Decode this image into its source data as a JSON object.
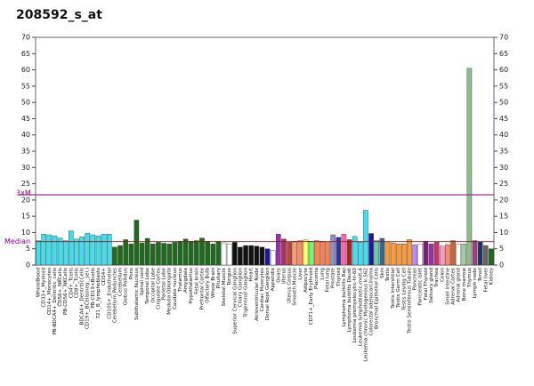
{
  "chart_data": {
    "type": "bar",
    "title": "208592_s_at",
    "categories": [
      "WholeBlood",
      "CD33+_Myeloid",
      "CD14+_Monocytes",
      "PB-BDCA4+_Dentritic_cells",
      "CD56+_NKCells",
      "PB-CD56+_NKCells",
      "CD4+_Tcells",
      "CD8+_Tcells",
      "BDCA4+_DentriticCells",
      "CD19+_BCells(neg._sel.)",
      "PB-CD19+Bcells",
      "721_B_lymphoblasts",
      "CD34+",
      "CD105+_Endothelial",
      "Cerebellum Peduncles",
      "Cerebellum",
      "Globus Pallidus",
      "Pons",
      "Subthalamic Nucleus",
      "Spinal cord",
      "Temporal Lobe",
      "Occipital Lobe",
      "Cingulate Cortex",
      "Parietal Lobe",
      "Medulla Oblongata",
      "Caudate nucleus",
      "Thalamus",
      "Amygdala",
      "Hypothalamus",
      "Fetal brain",
      "Prefrontal Cortex",
      "Olfactory Bulb",
      "Whole Brain",
      "Pituitary",
      "Skeletal Muscle",
      "Tongue",
      "Superior Cervical Ganglion",
      "Ciliary Ganglion",
      "Trigeminal Ganglion",
      "Heart",
      "Atrioventricular Node",
      "Cardiac Myocytes",
      "Dorsal Root Ganglion",
      "Appendix",
      "Ovary",
      "Uterus",
      "Uterus Corpus",
      "Smooth Muscle",
      "Liver",
      "Adipocyte",
      "CD71+_Early Erythroid",
      "Placenta",
      "Lung",
      "Fetal lung",
      "Prostate",
      "Thyroid",
      "Lymphoma burkitts Raji",
      "Lymphoma burkitts Daudi",
      "Leukemia promyelocytic-hl-60",
      "Leukemia lymphoblastic-molt-4",
      "Leukemia chronic Myelogenous k-562",
      "Colorectal adenocarcinoma",
      "Bronchial Epithelial Cells",
      "Skin",
      "Testis",
      "Testis Interstitial",
      "Testis Germ Cell",
      "Testis Leydig Cell",
      "Testis Seminiferous Tubule",
      "Pancreas",
      "Pancreatic Islet",
      "Fetal Thyroid",
      "Salivary gland",
      "Trachea",
      "Colon",
      "Small intestine",
      "Adrenal Cortex",
      "Adrenal gland",
      "Bone marrow",
      "Thymus",
      "Lymph node",
      "Tonsil",
      "Fetal liver",
      "Kidney"
    ],
    "values": [
      7.5,
      9.5,
      9.3,
      9,
      8.3,
      7.5,
      10.5,
      8,
      8.7,
      9.8,
      9.3,
      9,
      9.5,
      9.5,
      5.5,
      6,
      7.8,
      6.5,
      13.8,
      6.8,
      8.2,
      6.5,
      7,
      6.7,
      6.5,
      7,
      7.3,
      8,
      7.3,
      7.5,
      8.3,
      7.3,
      6.5,
      7.3,
      6.8,
      6.5,
      7,
      5.5,
      6,
      6,
      5.8,
      5.5,
      5,
      4.5,
      9.5,
      8,
      7,
      7.3,
      7.5,
      7.7,
      7.3,
      7.5,
      7.3,
      7.2,
      9.3,
      8.5,
      9.5,
      7.8,
      8.8,
      7,
      16.8,
      9.7,
      7.5,
      8.2,
      7.2,
      6.8,
      6.5,
      6.5,
      7.8,
      6.2,
      6.5,
      7.3,
      6.5,
      7,
      5.8,
      6.3,
      7.5,
      6.5,
      6.5,
      60.5,
      7.5,
      7.2,
      6,
      5
    ],
    "colors": [
      "#3ee0f0",
      "#3ee0f0",
      "#3ee0f0",
      "#3ee0f0",
      "#3ee0f0",
      "#3ee0f0",
      "#3ee0f0",
      "#3ee0f0",
      "#3ee0f0",
      "#3ee0f0",
      "#3ee0f0",
      "#3ee0f0",
      "#3ee0f0",
      "#3ee0f0",
      "#1e6b1e",
      "#1e6b1e",
      "#1e6b1e",
      "#1e6b1e",
      "#1e6b1e",
      "#1e6b1e",
      "#1e6b1e",
      "#1e6b1e",
      "#1e6b1e",
      "#1e6b1e",
      "#1e6b1e",
      "#1e6b1e",
      "#1e6b1e",
      "#1e6b1e",
      "#1e6b1e",
      "#1e6b1e",
      "#1e6b1e",
      "#1e6b1e",
      "#1e6b1e",
      "#1e6b1e",
      "#ffffff",
      "#ffffff",
      "#111111",
      "#111111",
      "#111111",
      "#111111",
      "#111111",
      "#111111",
      "#1a1aa0",
      "#ffffff",
      "#9a2fb0",
      "#b03060",
      "#c04040",
      "#ff9966",
      "#ff8866",
      "#ffff66",
      "#66ff66",
      "#ff7f50",
      "#ff7f50",
      "#ff7f50",
      "#9090c0",
      "#3030a0",
      "#ff66aa",
      "#aa2222",
      "#3ee0f0",
      "#3ee0f0",
      "#3ee0f0",
      "#1a1aa0",
      "#66ccaa",
      "#336699",
      "#ff9933",
      "#ff9933",
      "#ff9933",
      "#ff9933",
      "#ff9933",
      "#bb88ff",
      "#ffffff",
      "#7a1e7a",
      "#9a2fb0",
      "#cc3366",
      "#ff99cc",
      "#ff8866",
      "#cc6633",
      "#ffffff",
      "#9bd09b",
      "#8fbc8f",
      "#a04080",
      "#223366",
      "#666666",
      "#1e6b1e"
    ],
    "ylim": [
      0,
      70
    ],
    "yticks": [
      0,
      5,
      10,
      15,
      20,
      25,
      30,
      35,
      40,
      45,
      50,
      55,
      60,
      65,
      70
    ],
    "median": 7.2,
    "median_label": "Median",
    "threshold": 21.6,
    "threshold_label": "3xM"
  }
}
